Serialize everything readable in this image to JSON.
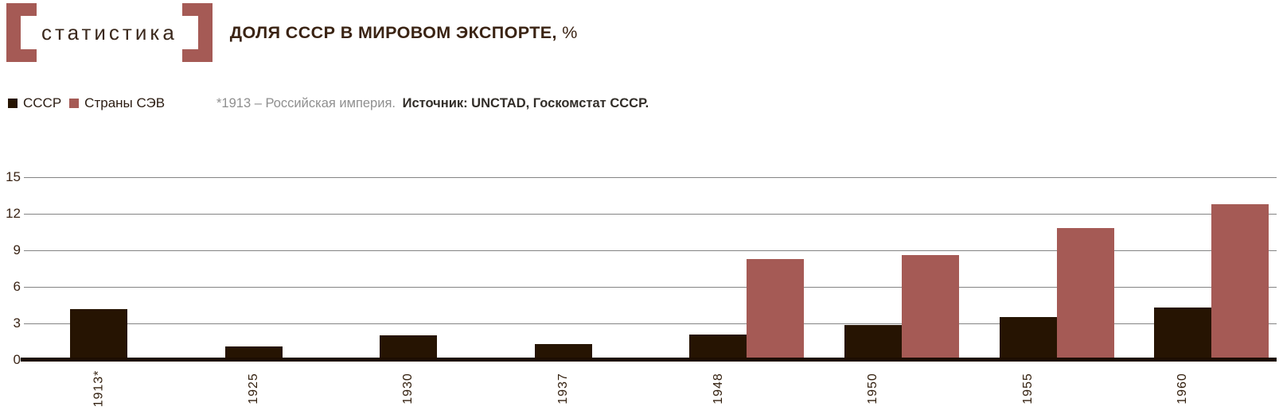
{
  "logo": {
    "text": "статистика"
  },
  "header": {
    "title": "ДОЛЯ СССР В МИРОВОМ ЭКСПОРТЕ,",
    "title_suffix": "%"
  },
  "legend": {
    "items": [
      {
        "label": "СССР",
        "color": "#261402"
      },
      {
        "label": "Страны СЭВ",
        "color": "#A55A55"
      }
    ]
  },
  "note": {
    "muted": "*1913 – Российская империя.",
    "strong": "Источник: UNCTAD, Госкомстат СССР."
  },
  "colors": {
    "accent": "#A55A55",
    "bar_dark": "#261402",
    "bar_red": "#A55A55",
    "grid": "#848484",
    "axis": "#1C0D01",
    "text_dark": "#3A2313",
    "text_muted": "#8F8F8F"
  },
  "chart_data": {
    "type": "bar",
    "title": "ДОЛЯ СССР В МИРОВОМ ЭКСПОРТЕ, %",
    "categories": [
      "1913*",
      "1925",
      "1930",
      "1937",
      "1948",
      "1950",
      "1955",
      "1960"
    ],
    "series": [
      {
        "name": "СССР",
        "color": "#261402",
        "values": [
          4.2,
          1.1,
          2.0,
          1.3,
          2.1,
          2.9,
          3.5,
          4.3
        ]
      },
      {
        "name": "Страны СЭВ",
        "color": "#A55A55",
        "values": [
          0,
          0,
          0,
          0,
          8.3,
          8.6,
          10.8,
          12.8
        ]
      }
    ],
    "xlabel": "",
    "ylabel": "",
    "ylim": [
      0,
      15
    ],
    "yticks": [
      0,
      3,
      6,
      9,
      12,
      15
    ],
    "grid": true,
    "xtick_rotation": 90,
    "legend_position": "top-left"
  }
}
